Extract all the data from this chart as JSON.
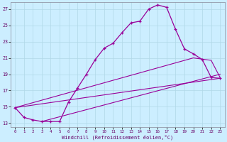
{
  "xlabel": "Windchill (Refroidissement éolien,°C)",
  "bg_color": "#cceeff",
  "grid_color": "#b0d8e8",
  "line_color": "#990099",
  "xlim": [
    -0.5,
    23.5
  ],
  "ylim": [
    12.5,
    27.8
  ],
  "yticks": [
    13,
    15,
    17,
    19,
    21,
    23,
    25,
    27
  ],
  "xticks": [
    0,
    1,
    2,
    3,
    4,
    5,
    6,
    7,
    8,
    9,
    10,
    11,
    12,
    13,
    14,
    15,
    16,
    17,
    18,
    19,
    20,
    21,
    22,
    23
  ],
  "curve_x": [
    0,
    1,
    2,
    3,
    4,
    5,
    6,
    7,
    8,
    9,
    10,
    11,
    12,
    13,
    14,
    15,
    16,
    17,
    18,
    19,
    20,
    21,
    22,
    23
  ],
  "curve_y": [
    14.9,
    13.7,
    13.4,
    13.2,
    13.2,
    13.2,
    15.6,
    17.3,
    19.0,
    20.8,
    22.2,
    22.8,
    24.1,
    25.3,
    25.5,
    27.0,
    27.5,
    27.2,
    24.5,
    22.1,
    21.5,
    20.8,
    18.6,
    18.5
  ],
  "line2_x": [
    0,
    20,
    22,
    23
  ],
  "line2_y": [
    14.9,
    21.0,
    20.7,
    18.6
  ],
  "line3_x": [
    0,
    23
  ],
  "line3_y": [
    14.9,
    18.5
  ],
  "line4_x": [
    3,
    23
  ],
  "line4_y": [
    13.2,
    19.0
  ]
}
